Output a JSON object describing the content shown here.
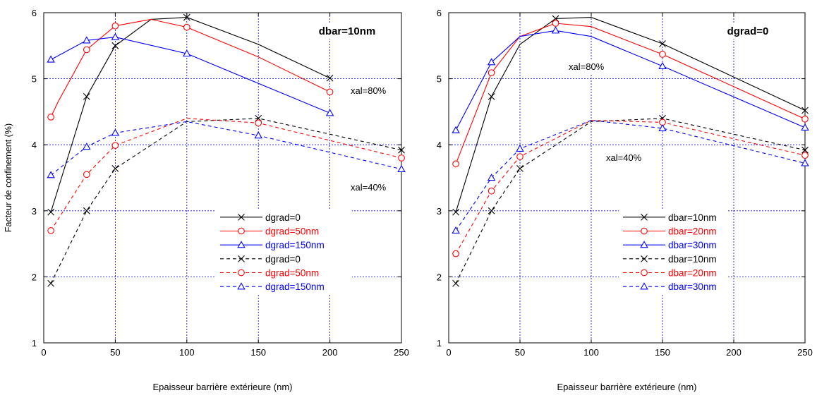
{
  "chart_data": [
    {
      "type": "line",
      "title": "dbar=10nm",
      "xlabel": "Epaisseur barrière extérieure (nm)",
      "ylabel": "Facteur de confinement (%)",
      "xlim": [
        0,
        250
      ],
      "ylim": [
        1,
        6
      ],
      "xticks": [
        0,
        50,
        100,
        150,
        200,
        250
      ],
      "yticks": [
        1,
        2,
        3,
        4,
        5,
        6
      ],
      "grid": true,
      "legend_position": "lower-right",
      "annotations": [
        "xal=80%",
        "xal=40%"
      ],
      "series": [
        {
          "name": "dgrad=0",
          "color": "#000000",
          "dashed": false,
          "marker": "x",
          "x": [
            5,
            30,
            50,
            75,
            100,
            150,
            200
          ],
          "y": [
            2.98,
            4.73,
            5.5,
            5.9,
            5.93,
            5.52,
            5.01
          ],
          "marked": [
            true,
            true,
            true,
            false,
            true,
            false,
            true
          ]
        },
        {
          "name": "dgrad=50nm",
          "color": "#ff0000",
          "dashed": false,
          "marker": "o",
          "x": [
            5,
            10,
            30,
            50,
            75,
            100,
            150,
            200
          ],
          "y": [
            4.42,
            4.65,
            5.44,
            5.8,
            5.9,
            5.78,
            5.33,
            4.8
          ],
          "marked": [
            true,
            false,
            true,
            true,
            false,
            true,
            false,
            true
          ]
        },
        {
          "name": "dgrad=150nm",
          "color": "#0000ff",
          "dashed": false,
          "marker": "triangle",
          "x": [
            5,
            30,
            50,
            100,
            200
          ],
          "y": [
            5.29,
            5.58,
            5.63,
            5.38,
            4.48
          ],
          "marked": [
            true,
            true,
            true,
            true,
            true
          ]
        },
        {
          "name": "dgrad=0",
          "color": "#000000",
          "dashed": true,
          "marker": "x",
          "x": [
            5,
            30,
            50,
            100,
            150,
            250
          ],
          "y": [
            1.9,
            3.0,
            3.64,
            4.35,
            4.4,
            3.92
          ],
          "marked": [
            true,
            true,
            true,
            false,
            true,
            true
          ]
        },
        {
          "name": "dgrad=50nm",
          "color": "#ff0000",
          "dashed": true,
          "marker": "o",
          "x": [
            5,
            30,
            50,
            100,
            150,
            250
          ],
          "y": [
            2.7,
            3.55,
            3.99,
            4.4,
            4.33,
            3.8
          ],
          "marked": [
            true,
            true,
            true,
            false,
            true,
            true
          ]
        },
        {
          "name": "dgrad=150nm",
          "color": "#0000ff",
          "dashed": true,
          "marker": "triangle",
          "x": [
            5,
            30,
            50,
            100,
            150,
            250
          ],
          "y": [
            3.54,
            3.97,
            4.18,
            4.35,
            4.14,
            3.63
          ],
          "marked": [
            true,
            true,
            true,
            false,
            true,
            true
          ]
        }
      ]
    },
    {
      "type": "line",
      "title": "dgrad=0",
      "xlabel": "Epaisseur barrière extérieure (nm)",
      "ylabel": "",
      "xlim": [
        0,
        250
      ],
      "ylim": [
        1,
        6
      ],
      "xticks": [
        0,
        50,
        100,
        150,
        200,
        250
      ],
      "yticks": [
        1,
        2,
        3,
        4,
        5,
        6
      ],
      "grid": true,
      "legend_position": "lower-right",
      "annotations": [
        "xal=80%",
        "xal=40%"
      ],
      "series": [
        {
          "name": "dbar=10nm",
          "color": "#000000",
          "dashed": false,
          "marker": "x",
          "x": [
            5,
            30,
            50,
            75,
            100,
            150,
            250
          ],
          "y": [
            2.98,
            4.73,
            5.52,
            5.91,
            5.93,
            5.53,
            4.52
          ],
          "marked": [
            true,
            true,
            false,
            true,
            false,
            true,
            true
          ]
        },
        {
          "name": "dbar=20nm",
          "color": "#ff0000",
          "dashed": false,
          "marker": "o",
          "x": [
            5,
            30,
            50,
            75,
            100,
            150,
            250
          ],
          "y": [
            3.71,
            5.09,
            5.64,
            5.84,
            5.79,
            5.37,
            4.39
          ],
          "marked": [
            true,
            true,
            false,
            true,
            false,
            true,
            true
          ]
        },
        {
          "name": "dbar=30nm",
          "color": "#0000ff",
          "dashed": false,
          "marker": "triangle",
          "x": [
            5,
            30,
            50,
            75,
            100,
            150,
            250
          ],
          "y": [
            4.22,
            5.25,
            5.64,
            5.73,
            5.64,
            5.19,
            4.26
          ],
          "marked": [
            true,
            true,
            false,
            true,
            false,
            true,
            true
          ]
        },
        {
          "name": "dbar=10nm",
          "color": "#000000",
          "dashed": true,
          "marker": "x",
          "x": [
            5,
            30,
            50,
            100,
            150,
            250
          ],
          "y": [
            1.9,
            3.0,
            3.64,
            4.35,
            4.4,
            3.92
          ],
          "marked": [
            true,
            true,
            true,
            false,
            true,
            true
          ]
        },
        {
          "name": "dbar=20nm",
          "color": "#ff0000",
          "dashed": true,
          "marker": "o",
          "x": [
            5,
            30,
            50,
            100,
            150,
            250
          ],
          "y": [
            2.35,
            3.3,
            3.82,
            4.37,
            4.34,
            3.84
          ],
          "marked": [
            true,
            true,
            true,
            false,
            true,
            true
          ]
        },
        {
          "name": "dbar=30nm",
          "color": "#0000ff",
          "dashed": true,
          "marker": "triangle",
          "x": [
            5,
            30,
            50,
            100,
            150,
            250
          ],
          "y": [
            2.7,
            3.5,
            3.94,
            4.37,
            4.25,
            3.72
          ],
          "marked": [
            true,
            true,
            true,
            false,
            true,
            true
          ]
        }
      ]
    }
  ]
}
